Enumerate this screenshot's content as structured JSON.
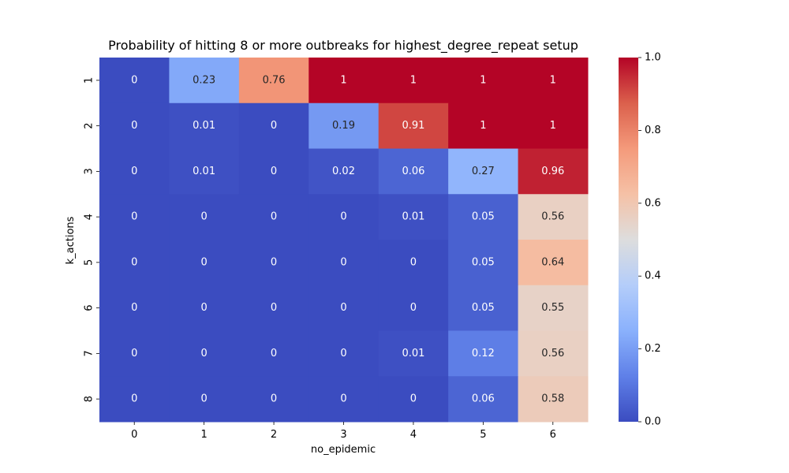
{
  "chart_data": {
    "type": "heatmap",
    "title": "Probability of hitting 8 or more outbreaks for highest_degree_repeat setup",
    "xlabel": "no_epidemic",
    "ylabel": "k_actions",
    "x_categories": [
      "0",
      "1",
      "2",
      "3",
      "4",
      "5",
      "6"
    ],
    "y_categories": [
      "1",
      "2",
      "3",
      "4",
      "5",
      "6",
      "7",
      "8"
    ],
    "values": [
      [
        0,
        0.23,
        0.76,
        1,
        1,
        1,
        1
      ],
      [
        0,
        0.01,
        0,
        0.19,
        0.91,
        1,
        1
      ],
      [
        0,
        0.01,
        0,
        0.02,
        0.06,
        0.27,
        0.96
      ],
      [
        0,
        0,
        0,
        0,
        0.01,
        0.05,
        0.56
      ],
      [
        0,
        0,
        0,
        0,
        0,
        0.05,
        0.64
      ],
      [
        0,
        0,
        0,
        0,
        0,
        0.05,
        0.55
      ],
      [
        0,
        0,
        0,
        0,
        0.01,
        0.12,
        0.56
      ],
      [
        0,
        0,
        0,
        0,
        0,
        0.06,
        0.58
      ]
    ],
    "colormap": "coolwarm",
    "vmin": 0,
    "vmax": 1,
    "colorbar_ticks": [
      "0.0",
      "0.2",
      "0.4",
      "0.6",
      "0.8",
      "1.0"
    ]
  }
}
